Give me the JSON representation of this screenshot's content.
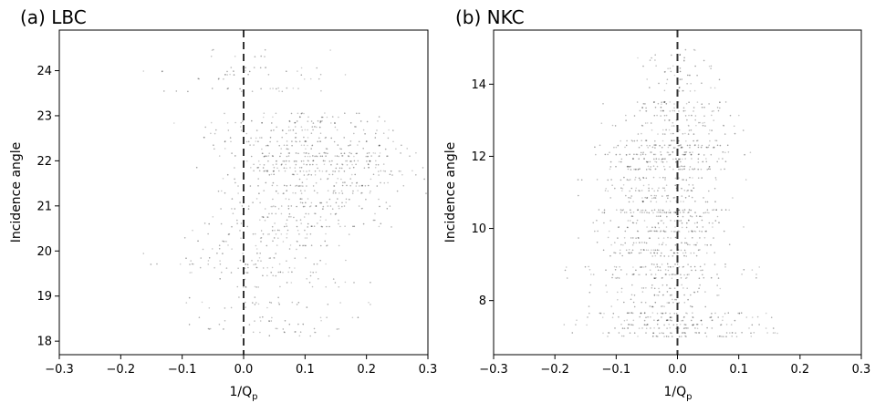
{
  "chart_data": [
    {
      "type": "scatter",
      "title": "(a) LBC",
      "xlabel": "1/Q",
      "xlabel_sub": "p",
      "ylabel": "Incidence angle",
      "xlim": [
        -0.3,
        0.3
      ],
      "ylim": [
        17.7,
        24.9
      ],
      "xticks": [
        -0.3,
        -0.2,
        -0.1,
        0.0,
        0.1,
        0.2,
        0.3
      ],
      "xtick_labels": [
        "−0.3",
        "−0.2",
        "−0.1",
        "0.0",
        "0.1",
        "0.2",
        "0.3"
      ],
      "yticks": [
        18,
        19,
        20,
        21,
        22,
        23,
        24
      ],
      "ytick_labels": [
        "18",
        "19",
        "20",
        "21",
        "22",
        "23",
        "24"
      ],
      "reference_line_x": 0.0,
      "grid": false,
      "point_color": "#000000",
      "bands": [
        {
          "y_min": 24.3,
          "y_max": 24.5,
          "x_center": 0.03,
          "x_spread": 0.11,
          "density": 0.25
        },
        {
          "y_min": 23.8,
          "y_max": 24.1,
          "x_center": 0.02,
          "x_spread": 0.12,
          "density": 0.3
        },
        {
          "y_min": 23.5,
          "y_max": 23.7,
          "x_center": 0.0,
          "x_spread": 0.09,
          "density": 0.3
        },
        {
          "y_min": 22.8,
          "y_max": 23.1,
          "x_center": 0.08,
          "x_spread": 0.11,
          "density": 0.55
        },
        {
          "y_min": 22.4,
          "y_max": 22.8,
          "x_center": 0.1,
          "x_spread": 0.11,
          "density": 0.7
        },
        {
          "y_min": 21.9,
          "y_max": 22.4,
          "x_center": 0.12,
          "x_spread": 0.11,
          "density": 1.0
        },
        {
          "y_min": 21.4,
          "y_max": 21.9,
          "x_center": 0.13,
          "x_spread": 0.11,
          "density": 0.95
        },
        {
          "y_min": 20.9,
          "y_max": 21.4,
          "x_center": 0.11,
          "x_spread": 0.1,
          "density": 0.75
        },
        {
          "y_min": 20.5,
          "y_max": 20.9,
          "x_center": 0.08,
          "x_spread": 0.1,
          "density": 0.55
        },
        {
          "y_min": 20.0,
          "y_max": 20.5,
          "x_center": 0.04,
          "x_spread": 0.1,
          "density": 0.45
        },
        {
          "y_min": 19.5,
          "y_max": 20.0,
          "x_center": 0.02,
          "x_spread": 0.1,
          "density": 0.45
        },
        {
          "y_min": 19.2,
          "y_max": 19.5,
          "x_center": 0.05,
          "x_spread": 0.1,
          "density": 0.3
        },
        {
          "y_min": 18.7,
          "y_max": 19.0,
          "x_center": 0.03,
          "x_spread": 0.09,
          "density": 0.3
        },
        {
          "y_min": 18.1,
          "y_max": 18.6,
          "x_center": 0.06,
          "x_spread": 0.08,
          "density": 0.3
        }
      ]
    },
    {
      "type": "scatter",
      "title": "(b) NKC",
      "xlabel": "1/Q",
      "xlabel_sub": "p",
      "ylabel": "Incidence angle",
      "xlim": [
        -0.3,
        0.3
      ],
      "ylim": [
        6.5,
        15.5
      ],
      "xticks": [
        -0.3,
        -0.2,
        -0.1,
        0.0,
        0.1,
        0.2,
        0.3
      ],
      "xtick_labels": [
        "−0.3",
        "−0.2",
        "−0.1",
        "0.0",
        "0.1",
        "0.2",
        "0.3"
      ],
      "yticks": [
        8,
        10,
        12,
        14
      ],
      "ytick_labels": [
        "8",
        "10",
        "12",
        "14"
      ],
      "reference_line_x": 0.0,
      "grid": false,
      "point_color": "#000000",
      "bands": [
        {
          "y_min": 13.8,
          "y_max": 15.0,
          "x_center": 0.0,
          "x_spread": 0.04,
          "density": 0.15
        },
        {
          "y_min": 12.6,
          "y_max": 13.6,
          "x_center": 0.0,
          "x_spread": 0.07,
          "density": 0.5
        },
        {
          "y_min": 11.6,
          "y_max": 12.5,
          "x_center": -0.02,
          "x_spread": 0.08,
          "density": 0.85
        },
        {
          "y_min": 10.7,
          "y_max": 11.5,
          "x_center": -0.03,
          "x_spread": 0.07,
          "density": 0.6
        },
        {
          "y_min": 9.9,
          "y_max": 10.6,
          "x_center": -0.02,
          "x_spread": 0.08,
          "density": 1.0
        },
        {
          "y_min": 9.2,
          "y_max": 9.8,
          "x_center": -0.03,
          "x_spread": 0.07,
          "density": 0.75
        },
        {
          "y_min": 8.6,
          "y_max": 9.1,
          "x_center": -0.02,
          "x_spread": 0.09,
          "density": 0.7
        },
        {
          "y_min": 7.8,
          "y_max": 8.5,
          "x_center": -0.03,
          "x_spread": 0.07,
          "density": 0.4
        },
        {
          "y_min": 7.0,
          "y_max": 7.7,
          "x_center": 0.0,
          "x_spread": 0.11,
          "density": 1.0
        }
      ]
    }
  ]
}
